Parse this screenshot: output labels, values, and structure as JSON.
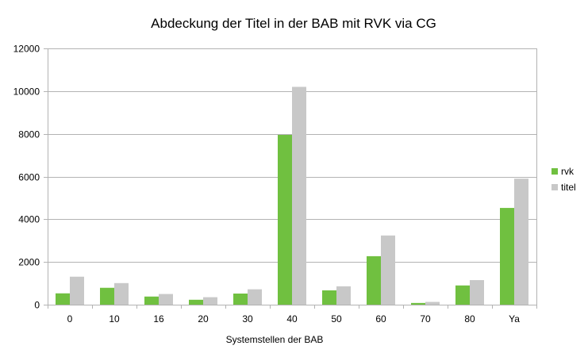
{
  "chart_data": {
    "type": "bar",
    "title": "Abdeckung der Titel in der BAB mit RVK via CG",
    "xlabel": "Systemstellen der BAB",
    "ylabel": "",
    "categories": [
      "0",
      "10",
      "16",
      "20",
      "30",
      "40",
      "50",
      "60",
      "70",
      "80",
      "Ya"
    ],
    "series": [
      {
        "name": "rvk",
        "color": "#70C040",
        "values": [
          530,
          790,
          380,
          230,
          520,
          7950,
          670,
          2270,
          80,
          900,
          4530
        ]
      },
      {
        "name": "titel",
        "color": "#C8C8C8",
        "values": [
          1310,
          1010,
          500,
          350,
          720,
          10200,
          860,
          3240,
          130,
          1150,
          5900
        ]
      }
    ],
    "ylim": [
      0,
      12000
    ],
    "yticks": [
      0,
      2000,
      4000,
      6000,
      8000,
      10000,
      12000
    ],
    "grid": true,
    "legend_position": "right"
  }
}
